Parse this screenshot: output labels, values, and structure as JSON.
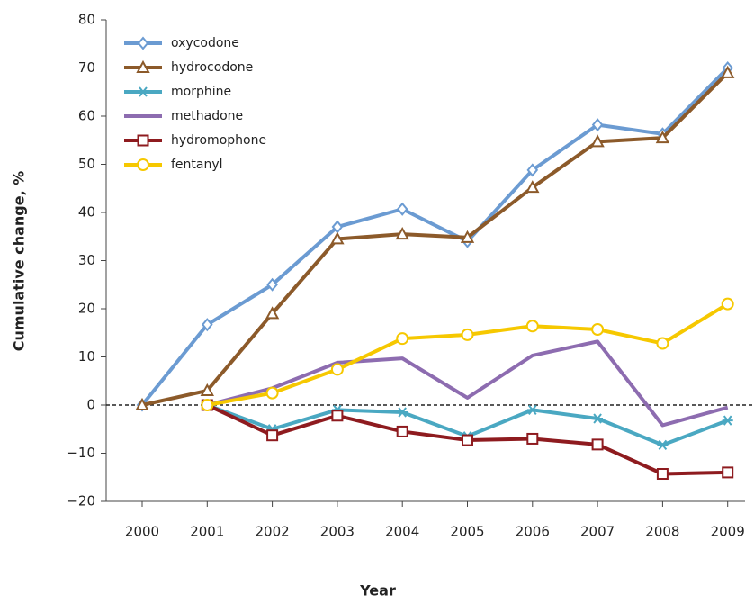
{
  "chart_data": {
    "type": "line",
    "x_label": "Year",
    "y_label": "Cumulative change, %",
    "categories": [
      "2000",
      "2001",
      "2002",
      "2003",
      "2004",
      "2005",
      "2006",
      "2007",
      "2008",
      "2009"
    ],
    "ylim": [
      -20,
      80
    ],
    "yticks": [
      {
        "value": -20,
        "label": "−20"
      },
      {
        "value": -10,
        "label": "−10"
      },
      0,
      10,
      20,
      30,
      40,
      50,
      60,
      70,
      80
    ],
    "series": [
      {
        "name": "oxycodone",
        "color": "#6b9bd2",
        "marker": "diamond",
        "values": [
          0,
          16.7,
          25,
          37,
          40.7,
          34,
          48.8,
          58.2,
          56.3,
          70
        ]
      },
      {
        "name": "hydrocodone",
        "color": "#8c5a2a",
        "marker": "triangle",
        "values": [
          0,
          3,
          19,
          34.5,
          35.5,
          34.8,
          45.2,
          54.7,
          55.5,
          69
        ]
      },
      {
        "name": "morphine",
        "color": "#4aa8c2",
        "marker": "asterisk",
        "values": [
          null,
          0,
          -5,
          -1,
          -1.5,
          -6.5,
          -1,
          -2.8,
          -8.3,
          -3.2
        ]
      },
      {
        "name": "methadone",
        "color": "#8d6cb0",
        "marker": "none",
        "values": [
          null,
          0,
          3.5,
          8.8,
          9.7,
          1.5,
          10.3,
          13.2,
          -4.2,
          -0.5
        ]
      },
      {
        "name": "hydromophone",
        "color": "#8e1b1f",
        "marker": "square",
        "values": [
          null,
          0,
          -6.3,
          -2.2,
          -5.5,
          -7.3,
          -7,
          -8.2,
          -14.3,
          -14
        ]
      },
      {
        "name": "fentanyl",
        "color": "#f6c800",
        "marker": "circle",
        "values": [
          null,
          0,
          2.5,
          7.4,
          13.8,
          14.6,
          16.4,
          15.7,
          12.8,
          21
        ]
      }
    ]
  }
}
